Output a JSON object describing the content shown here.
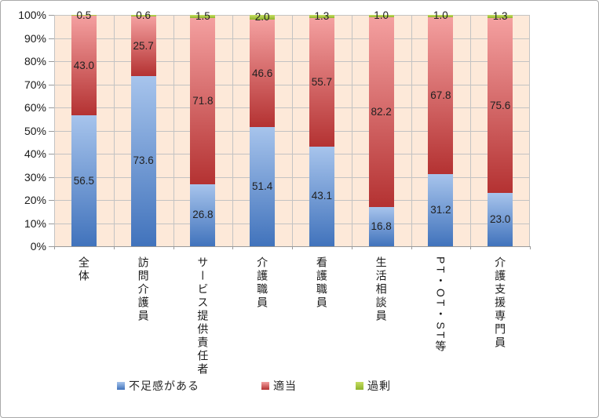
{
  "chart_data": {
    "type": "bar",
    "variant": "100%-stacked-column",
    "title": "",
    "xlabel": "",
    "ylabel": "",
    "ylim": [
      0,
      100
    ],
    "y_tick_step": 10,
    "y_tick_suffix": "%",
    "grid": true,
    "legend_position": "bottom",
    "plot_background": "#FDE9D9",
    "gridline_color": "#c3c3c3",
    "axis_line_color": "#9a9a9a",
    "categories": [
      "全体",
      "訪問介護員",
      "サービス提供責任者",
      "介護職員",
      "看護職員",
      "生活相談員",
      "PT・OT・ST等",
      "介護支援専門員"
    ],
    "series": [
      {
        "name": "不足感がある",
        "values": [
          56.5,
          73.6,
          26.8,
          51.4,
          43.1,
          16.8,
          31.2,
          23.0
        ],
        "color_top": "#A7C4EC",
        "color_bottom": "#4173BC"
      },
      {
        "name": "適当",
        "values": [
          43.0,
          25.7,
          71.8,
          46.6,
          55.7,
          82.2,
          67.8,
          75.6
        ],
        "color_top": "#F4A0A0",
        "color_bottom": "#B43232"
      },
      {
        "name": "過剰",
        "values": [
          0.5,
          0.6,
          1.5,
          2.0,
          1.3,
          1.0,
          1.0,
          1.3
        ],
        "color_top": "#C6DD62",
        "color_bottom": "#8FB42E"
      }
    ],
    "y_tick_labels": [
      "100%",
      "90%",
      "80%",
      "70%",
      "60%",
      "50%",
      "40%",
      "30%",
      "20%",
      "10%",
      "0%"
    ]
  }
}
